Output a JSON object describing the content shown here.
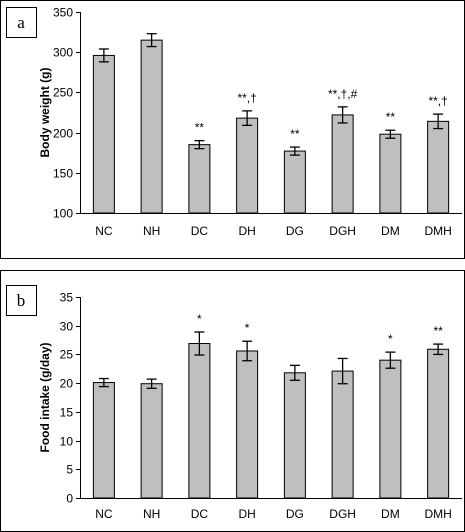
{
  "chart_data": [
    {
      "type": "bar",
      "panel_label": "a",
      "ylabel": "Body weight (g)",
      "ylim": [
        100,
        350
      ],
      "yticks": [
        100,
        150,
        200,
        250,
        300,
        350
      ],
      "categories": [
        "NC",
        "NH",
        "DC",
        "DH",
        "DG",
        "DGH",
        "DM",
        "DMH"
      ],
      "values": [
        296,
        315,
        185,
        218,
        177,
        222,
        198,
        214
      ],
      "errors": [
        8,
        8,
        5,
        9,
        5,
        10,
        5,
        9
      ],
      "annotations": [
        "",
        "",
        "**",
        "**,†",
        "**",
        "**,†,#",
        "**",
        "**,†"
      ],
      "bar_color": "#bfbfbf",
      "grid": false
    },
    {
      "type": "bar",
      "panel_label": "b",
      "ylabel": "Food intake (g/day)",
      "ylim": [
        0,
        35
      ],
      "yticks": [
        0,
        5,
        10,
        15,
        20,
        25,
        30,
        35
      ],
      "categories": [
        "NC",
        "NH",
        "DC",
        "DH",
        "DG",
        "DGH",
        "DM",
        "DMH"
      ],
      "values": [
        20.1,
        19.9,
        26.9,
        25.6,
        21.8,
        22.1,
        24.0,
        25.9
      ],
      "errors": [
        0.7,
        0.8,
        2.0,
        1.7,
        1.3,
        2.2,
        1.4,
        0.9
      ],
      "annotations": [
        "",
        "",
        "*",
        "*",
        "",
        "",
        "*",
        "**"
      ],
      "bar_color": "#bfbfbf",
      "grid": false
    }
  ]
}
